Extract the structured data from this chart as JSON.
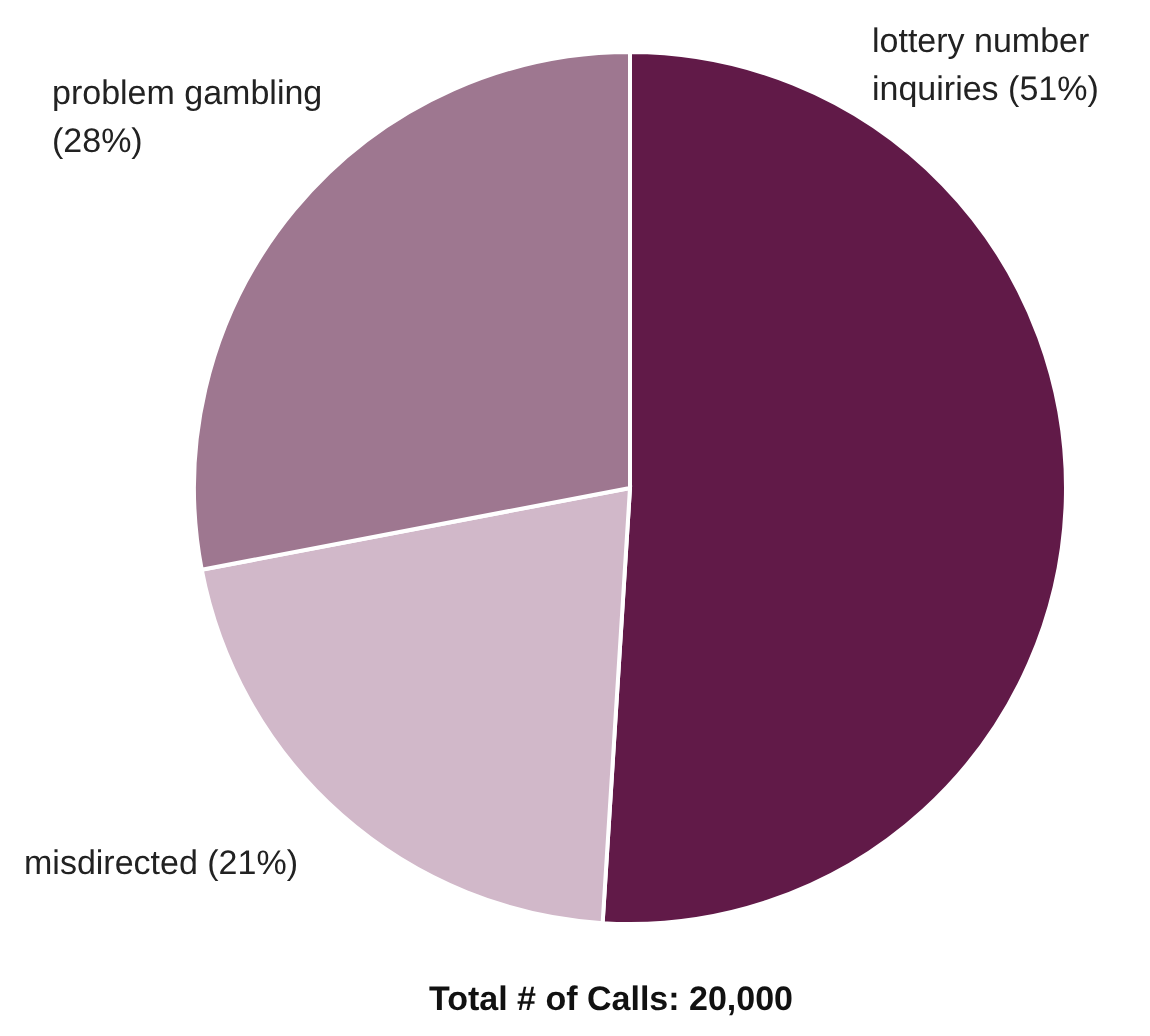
{
  "chart_data": {
    "type": "pie",
    "categories": [
      "lottery number inquiries",
      "misdirected",
      "problem gambling"
    ],
    "values": [
      51,
      21,
      28
    ],
    "value_labels": [
      "(51%)",
      "(21%)",
      "(28%)"
    ],
    "colors": [
      "#611a48",
      "#d1b8c9",
      "#9e7790"
    ],
    "annotations": [
      "Total # of Calls: 20,000"
    ]
  }
}
